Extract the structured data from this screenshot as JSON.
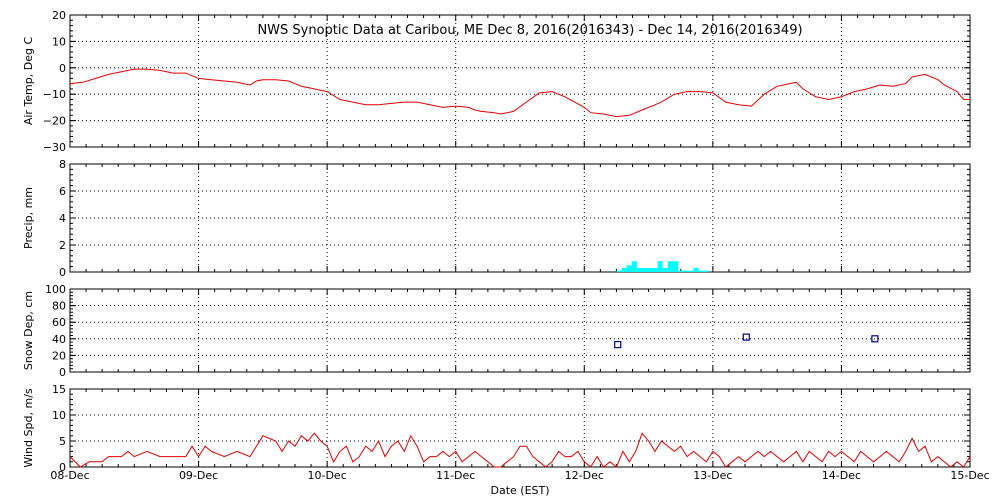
{
  "title": "NWS Synoptic Data at Caribou, ME   Dec  8, 2016(2016343) - Dec 14, 2016(2016349)",
  "xlabel": "Date (EST)",
  "x_ticks": [
    "08-Dec",
    "09-Dec",
    "10-Dec",
    "11-Dec",
    "12-Dec",
    "13-Dec",
    "14-Dec",
    "15-Dec"
  ],
  "colors": {
    "temp": "#e00000",
    "precip": "#00ffff",
    "snow": "#000080",
    "wind": "#e00000",
    "axes": "#000000"
  },
  "chart_data": [
    {
      "type": "line",
      "ylabel": "Air Temp, Deg C",
      "ylim": [
        -30,
        20
      ],
      "y_ticks": [
        "20",
        "10",
        "0",
        "−10",
        "−20",
        "−30"
      ],
      "x_unit": "days since 08-Dec 00:00",
      "points": [
        [
          0,
          -6
        ],
        [
          0.1,
          -5.5
        ],
        [
          0.2,
          -4
        ],
        [
          0.3,
          -2.5
        ],
        [
          0.4,
          -1.5
        ],
        [
          0.5,
          -0.5
        ],
        [
          0.6,
          -0.5
        ],
        [
          0.7,
          -1
        ],
        [
          0.8,
          -2
        ],
        [
          0.9,
          -2
        ],
        [
          1.0,
          -4
        ],
        [
          1.1,
          -4.5
        ],
        [
          1.2,
          -5
        ],
        [
          1.3,
          -5.5
        ],
        [
          1.4,
          -6.5
        ],
        [
          1.45,
          -5
        ],
        [
          1.5,
          -4.5
        ],
        [
          1.6,
          -4.5
        ],
        [
          1.7,
          -5
        ],
        [
          1.8,
          -7
        ],
        [
          1.9,
          -8
        ],
        [
          2.0,
          -9
        ],
        [
          2.1,
          -12
        ],
        [
          2.2,
          -13
        ],
        [
          2.3,
          -14
        ],
        [
          2.4,
          -14
        ],
        [
          2.5,
          -13.5
        ],
        [
          2.6,
          -13
        ],
        [
          2.7,
          -13
        ],
        [
          2.8,
          -14
        ],
        [
          2.9,
          -15
        ],
        [
          3.0,
          -14.5
        ],
        [
          3.1,
          -15
        ],
        [
          3.15,
          -16
        ],
        [
          3.2,
          -16.5
        ],
        [
          3.3,
          -17
        ],
        [
          3.35,
          -17.5
        ],
        [
          3.45,
          -16.5
        ],
        [
          3.55,
          -13
        ],
        [
          3.65,
          -9.5
        ],
        [
          3.75,
          -9
        ],
        [
          3.85,
          -11
        ],
        [
          4.0,
          -15
        ],
        [
          4.05,
          -17
        ],
        [
          4.15,
          -17.5
        ],
        [
          4.25,
          -18.5
        ],
        [
          4.35,
          -18
        ],
        [
          4.45,
          -16
        ],
        [
          4.55,
          -14
        ],
        [
          4.6,
          -13
        ],
        [
          4.7,
          -10
        ],
        [
          4.8,
          -9
        ],
        [
          4.9,
          -9
        ],
        [
          5.0,
          -9.5
        ],
        [
          5.1,
          -13
        ],
        [
          5.2,
          -14
        ],
        [
          5.3,
          -14.5
        ],
        [
          5.4,
          -10
        ],
        [
          5.5,
          -7
        ],
        [
          5.6,
          -6
        ],
        [
          5.65,
          -5.5
        ],
        [
          5.7,
          -8
        ],
        [
          5.8,
          -11
        ],
        [
          5.9,
          -12
        ],
        [
          6.0,
          -11
        ],
        [
          6.1,
          -9
        ],
        [
          6.2,
          -8
        ],
        [
          6.3,
          -6.5
        ],
        [
          6.4,
          -7
        ],
        [
          6.5,
          -6
        ],
        [
          6.55,
          -3.5
        ],
        [
          6.65,
          -2.5
        ],
        [
          6.75,
          -4.5
        ],
        [
          6.8,
          -6.5
        ],
        [
          6.9,
          -9
        ],
        [
          6.95,
          -12
        ],
        [
          7.0,
          -12
        ]
      ]
    },
    {
      "type": "bar",
      "ylabel": "Precip, mm",
      "ylim": [
        0,
        8
      ],
      "y_ticks": [
        "8",
        "6",
        "4",
        "2",
        "0"
      ],
      "x_unit": "days since 08-Dec 00:00",
      "bar_width_days": 0.04,
      "points": [
        [
          4.25,
          0.1
        ],
        [
          4.29,
          0.3
        ],
        [
          4.33,
          0.5
        ],
        [
          4.37,
          0.8
        ],
        [
          4.41,
          0.3
        ],
        [
          4.45,
          0.3
        ],
        [
          4.49,
          0.3
        ],
        [
          4.53,
          0.3
        ],
        [
          4.57,
          0.8
        ],
        [
          4.61,
          0.3
        ],
        [
          4.65,
          0.8
        ],
        [
          4.69,
          0.8
        ],
        [
          4.73,
          0.1
        ],
        [
          4.77,
          0.1
        ],
        [
          4.81,
          0.1
        ],
        [
          4.85,
          0.3
        ],
        [
          4.89,
          0.1
        ],
        [
          4.93,
          0.1
        ]
      ]
    },
    {
      "type": "scatter",
      "ylabel": "Snow Dep, cm",
      "ylim": [
        0,
        100
      ],
      "y_ticks": [
        "100",
        "80",
        "60",
        "40",
        "20",
        "0"
      ],
      "x_unit": "days since 08-Dec 00:00",
      "points": [
        [
          4.26,
          33
        ],
        [
          5.26,
          42
        ],
        [
          6.26,
          40
        ]
      ]
    },
    {
      "type": "line",
      "ylabel": "Wind Spd, m/s",
      "ylim": [
        0,
        15
      ],
      "y_ticks": [
        "15",
        "10",
        "5",
        "0"
      ],
      "x_unit": "days since 08-Dec 00:00",
      "points": [
        [
          0,
          2
        ],
        [
          0.08,
          0
        ],
        [
          0.15,
          1
        ],
        [
          0.25,
          1
        ],
        [
          0.3,
          2
        ],
        [
          0.4,
          2
        ],
        [
          0.45,
          3
        ],
        [
          0.5,
          2
        ],
        [
          0.6,
          3
        ],
        [
          0.7,
          2
        ],
        [
          0.8,
          2
        ],
        [
          0.9,
          2
        ],
        [
          0.95,
          4
        ],
        [
          1.0,
          2
        ],
        [
          1.05,
          4
        ],
        [
          1.1,
          3
        ],
        [
          1.2,
          2
        ],
        [
          1.3,
          3
        ],
        [
          1.4,
          2
        ],
        [
          1.5,
          6
        ],
        [
          1.6,
          5
        ],
        [
          1.65,
          3
        ],
        [
          1.7,
          5
        ],
        [
          1.75,
          4
        ],
        [
          1.8,
          6
        ],
        [
          1.85,
          5
        ],
        [
          1.9,
          6.5
        ],
        [
          1.95,
          5
        ],
        [
          2.0,
          4
        ],
        [
          2.05,
          1
        ],
        [
          2.1,
          3
        ],
        [
          2.15,
          4
        ],
        [
          2.2,
          1
        ],
        [
          2.25,
          2
        ],
        [
          2.3,
          4
        ],
        [
          2.35,
          3
        ],
        [
          2.4,
          5
        ],
        [
          2.45,
          2
        ],
        [
          2.5,
          4
        ],
        [
          2.55,
          5
        ],
        [
          2.6,
          3
        ],
        [
          2.65,
          6
        ],
        [
          2.7,
          4
        ],
        [
          2.75,
          1
        ],
        [
          2.8,
          2
        ],
        [
          2.85,
          2
        ],
        [
          2.9,
          3
        ],
        [
          2.95,
          2
        ],
        [
          3.0,
          3
        ],
        [
          3.05,
          1
        ],
        [
          3.1,
          2
        ],
        [
          3.15,
          3
        ],
        [
          3.2,
          2
        ],
        [
          3.25,
          1
        ],
        [
          3.3,
          0
        ],
        [
          3.35,
          0
        ],
        [
          3.4,
          1
        ],
        [
          3.45,
          2
        ],
        [
          3.5,
          4
        ],
        [
          3.55,
          4
        ],
        [
          3.6,
          2
        ],
        [
          3.65,
          1
        ],
        [
          3.7,
          0
        ],
        [
          3.75,
          1
        ],
        [
          3.8,
          3
        ],
        [
          3.85,
          2
        ],
        [
          3.9,
          2
        ],
        [
          3.95,
          3
        ],
        [
          4.0,
          1
        ],
        [
          4.05,
          0
        ],
        [
          4.1,
          2
        ],
        [
          4.15,
          0
        ],
        [
          4.2,
          1
        ],
        [
          4.25,
          0
        ],
        [
          4.3,
          3
        ],
        [
          4.35,
          1
        ],
        [
          4.4,
          3
        ],
        [
          4.45,
          6.5
        ],
        [
          4.5,
          5
        ],
        [
          4.55,
          3
        ],
        [
          4.6,
          5
        ],
        [
          4.65,
          4
        ],
        [
          4.7,
          3
        ],
        [
          4.75,
          4
        ],
        [
          4.8,
          2
        ],
        [
          4.85,
          3
        ],
        [
          4.9,
          2
        ],
        [
          4.95,
          1
        ],
        [
          5.0,
          3
        ],
        [
          5.05,
          2
        ],
        [
          5.1,
          0
        ],
        [
          5.15,
          1
        ],
        [
          5.2,
          2
        ],
        [
          5.25,
          1
        ],
        [
          5.3,
          2
        ],
        [
          5.35,
          3
        ],
        [
          5.4,
          2
        ],
        [
          5.45,
          3
        ],
        [
          5.5,
          2
        ],
        [
          5.55,
          1
        ],
        [
          5.6,
          2
        ],
        [
          5.65,
          3
        ],
        [
          5.7,
          1
        ],
        [
          5.75,
          3
        ],
        [
          5.8,
          2
        ],
        [
          5.85,
          1
        ],
        [
          5.9,
          3
        ],
        [
          5.95,
          2
        ],
        [
          6.0,
          3
        ],
        [
          6.05,
          2
        ],
        [
          6.1,
          1
        ],
        [
          6.15,
          3
        ],
        [
          6.2,
          2
        ],
        [
          6.25,
          1
        ],
        [
          6.3,
          2
        ],
        [
          6.35,
          3
        ],
        [
          6.4,
          2
        ],
        [
          6.45,
          1
        ],
        [
          6.5,
          3
        ],
        [
          6.55,
          5.5
        ],
        [
          6.6,
          3
        ],
        [
          6.65,
          4
        ],
        [
          6.7,
          1
        ],
        [
          6.75,
          2
        ],
        [
          6.8,
          1
        ],
        [
          6.85,
          0
        ],
        [
          6.9,
          1
        ],
        [
          6.95,
          0
        ],
        [
          7.0,
          2
        ]
      ]
    }
  ]
}
